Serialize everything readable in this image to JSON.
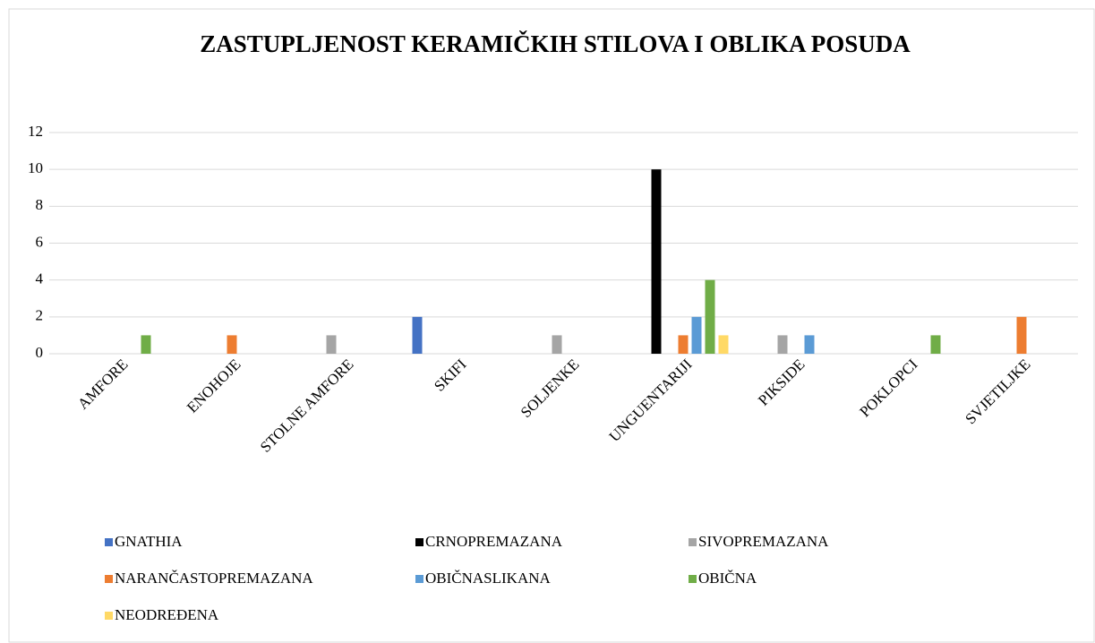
{
  "chart_data": {
    "type": "bar",
    "title": "ZASTUPLJENOST KERAMIČKIH STILOVA I OBLIKA POSUDA",
    "categories": [
      "AMFORE",
      "ENOHOJE",
      "STOLNE AMFORE",
      "SKIFI",
      "SOLJENKE",
      "UNGUENTARIJI",
      "PIKSIDE",
      "POKLOPCI",
      "SVJETILJKE"
    ],
    "series": [
      {
        "name": "GNATHIA",
        "color": "#4472c4",
        "values": [
          0,
          0,
          0,
          2,
          0,
          0,
          0,
          0,
          0
        ]
      },
      {
        "name": "CRNOPREMAZANA",
        "color": "#000000",
        "values": [
          0,
          0,
          0,
          0,
          0,
          10,
          0,
          0,
          0
        ]
      },
      {
        "name": "SIVOPREMAZANA",
        "color": "#a5a5a5",
        "values": [
          0,
          0,
          1,
          0,
          1,
          0,
          1,
          0,
          0
        ]
      },
      {
        "name": "NARANČASTOPREMAZANA",
        "color": "#ed7d31",
        "values": [
          0,
          1,
          0,
          0,
          0,
          1,
          0,
          0,
          2
        ]
      },
      {
        "name": "OBIČNASLIKANA",
        "color": "#5b9bd5",
        "values": [
          0,
          0,
          0,
          0,
          0,
          2,
          1,
          0,
          0
        ]
      },
      {
        "name": "OBIČNA",
        "color": "#70ad47",
        "values": [
          1,
          0,
          0,
          0,
          0,
          4,
          0,
          1,
          0
        ]
      },
      {
        "name": "NEODREĐENA",
        "color": "#ffd966",
        "values": [
          0,
          0,
          0,
          0,
          0,
          1,
          0,
          0,
          0
        ]
      }
    ],
    "ylim": [
      0,
      12
    ],
    "yticks": [
      0,
      2,
      4,
      6,
      8,
      10,
      12
    ],
    "grid": true,
    "legend": "bottom"
  }
}
